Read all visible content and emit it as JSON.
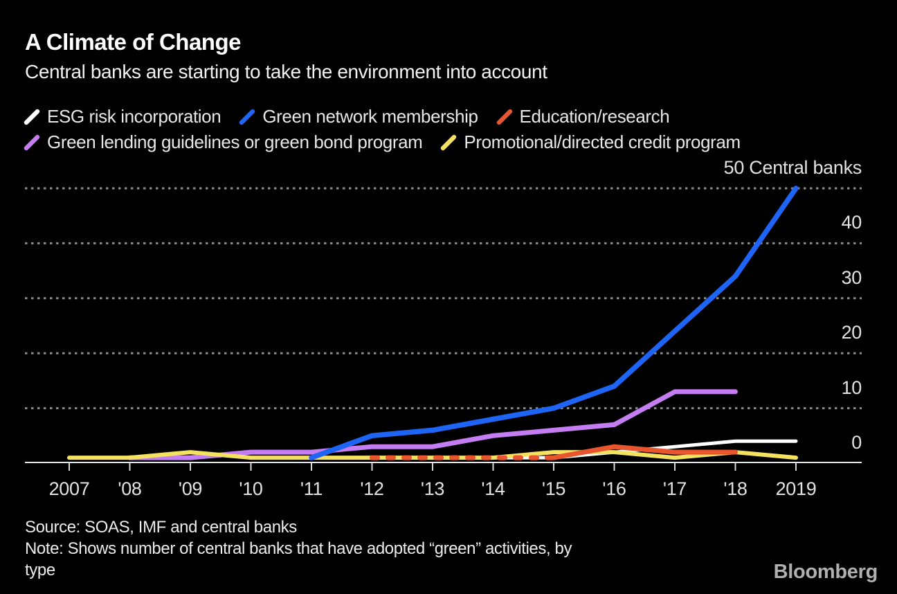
{
  "header": {
    "title": "A Climate of Change",
    "subtitle": "Central banks are starting to take the environment into account"
  },
  "legend": {
    "rows": [
      [
        {
          "label": "ESG risk incorporation",
          "color": "#ffffff"
        },
        {
          "label": "Green network membership",
          "color": "#1e64f5"
        },
        {
          "label": "Education/research",
          "color": "#e8552e"
        }
      ],
      [
        {
          "label": "Green lending guidelines or green bond program",
          "color": "#c47df2"
        },
        {
          "label": "Promotional/directed credit program",
          "color": "#f4e15f"
        }
      ]
    ]
  },
  "chart_data": {
    "type": "line",
    "x": [
      2007,
      2008,
      2009,
      2010,
      2011,
      2012,
      2013,
      2014,
      2015,
      2016,
      2017,
      2018,
      2019
    ],
    "x_tick_labels": [
      "2007",
      "'08",
      "'09",
      "'10",
      "'11",
      "'12",
      "'13",
      "'14",
      "'15",
      "'16",
      "'17",
      "'18",
      "2019"
    ],
    "y_axis": {
      "ticks": [
        0,
        10,
        20,
        30,
        40,
        50
      ],
      "top_label": "50 Central banks",
      "unit": "Central banks",
      "range": [
        0,
        50
      ],
      "gridlines": "dotted horizontal"
    },
    "series": [
      {
        "name": "ESG risk incorporation",
        "color": "#ffffff",
        "line_style": "solid",
        "points": [
          [
            2014,
            1
          ],
          [
            2015,
            1
          ],
          [
            2016,
            2
          ],
          [
            2017,
            3
          ],
          [
            2018,
            4
          ],
          [
            2019,
            4
          ]
        ]
      },
      {
        "name": "Green network membership",
        "color": "#1e64f5",
        "line_style": "solid",
        "points": [
          [
            2011,
            1
          ],
          [
            2012,
            5
          ],
          [
            2013,
            6
          ],
          [
            2014,
            8
          ],
          [
            2015,
            10
          ],
          [
            2016,
            14
          ],
          [
            2017,
            24
          ],
          [
            2018,
            34
          ],
          [
            2019,
            50
          ]
        ]
      },
      {
        "name": "Education/research",
        "color": "#e8552e",
        "line_style": "dashed until 2015, then solid",
        "dashed_until": 2015,
        "points": [
          [
            2012,
            1
          ],
          [
            2013,
            1
          ],
          [
            2014,
            1
          ],
          [
            2015,
            1
          ],
          [
            2016,
            3
          ],
          [
            2017,
            2
          ],
          [
            2018,
            2
          ]
        ]
      },
      {
        "name": "Green lending guidelines or green bond program",
        "color": "#c47df2",
        "line_style": "solid",
        "points": [
          [
            2008,
            1
          ],
          [
            2009,
            1
          ],
          [
            2010,
            2
          ],
          [
            2011,
            2
          ],
          [
            2012,
            3
          ],
          [
            2013,
            3
          ],
          [
            2014,
            5
          ],
          [
            2015,
            6
          ],
          [
            2016,
            7
          ],
          [
            2017,
            13
          ],
          [
            2018,
            13
          ]
        ]
      },
      {
        "name": "Promotional/directed credit program",
        "color": "#f4e15f",
        "line_style": "solid",
        "points": [
          [
            2007,
            1
          ],
          [
            2008,
            1
          ],
          [
            2009,
            2
          ],
          [
            2010,
            1
          ],
          [
            2011,
            1
          ],
          [
            2012,
            1
          ],
          [
            2013,
            1
          ],
          [
            2014,
            1
          ],
          [
            2015,
            2
          ],
          [
            2016,
            2
          ],
          [
            2017,
            1
          ],
          [
            2018,
            2
          ],
          [
            2019,
            1
          ]
        ]
      }
    ]
  },
  "footer": {
    "source": "Source: SOAS, IMF and central banks",
    "note_lines": [
      "Note: Shows number of central banks that have adopted “green” activities, by",
      "type"
    ],
    "brand": "Bloomberg"
  }
}
